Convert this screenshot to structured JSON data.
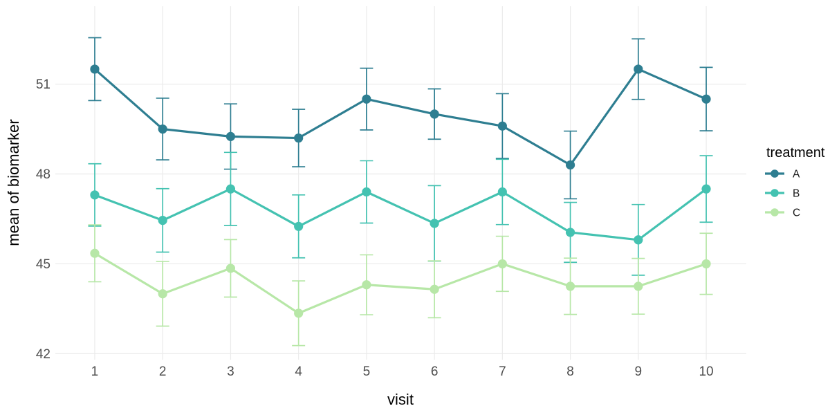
{
  "chart_data": {
    "type": "line",
    "title": "",
    "xlabel": "visit",
    "ylabel": "mean of biomarker",
    "legend_title": "treatment",
    "legend_position": "right",
    "grid": true,
    "error_bars": "mean ± se",
    "x": [
      1,
      2,
      3,
      4,
      5,
      6,
      7,
      8,
      9,
      10
    ],
    "xticks": [
      "1",
      "2",
      "3",
      "4",
      "5",
      "6",
      "7",
      "8",
      "9",
      "10"
    ],
    "yticks": [
      "42",
      "45",
      "48",
      "51"
    ],
    "xlim": [
      0.42,
      10.59
    ],
    "ylim": [
      41.8,
      53.6
    ],
    "grid_color": "#ebebeb",
    "tick_label_color": "#4d4d4d",
    "text_color": "#000000",
    "series": [
      {
        "name": "A",
        "color": "#2e7e91",
        "values": [
          51.5,
          49.5,
          49.25,
          49.2,
          50.5,
          50.0,
          49.6,
          48.3,
          51.5,
          50.5
        ],
        "se": [
          1.05,
          1.03,
          1.09,
          0.96,
          1.03,
          0.84,
          1.08,
          1.13,
          1.01,
          1.06
        ]
      },
      {
        "name": "B",
        "color": "#44c2b1",
        "values": [
          47.3,
          46.45,
          47.5,
          46.25,
          47.4,
          46.35,
          47.4,
          46.05,
          45.8,
          47.5
        ],
        "se": [
          1.04,
          1.06,
          1.22,
          1.05,
          1.04,
          1.26,
          1.09,
          1.0,
          1.18,
          1.11
        ]
      },
      {
        "name": "C",
        "color": "#b7e7a7",
        "values": [
          45.35,
          44.0,
          44.85,
          43.35,
          44.3,
          44.15,
          45.0,
          44.25,
          44.25,
          45.0
        ],
        "se": [
          0.95,
          1.08,
          0.96,
          1.08,
          1.0,
          0.95,
          0.92,
          0.94,
          0.93,
          1.02
        ]
      }
    ]
  }
}
